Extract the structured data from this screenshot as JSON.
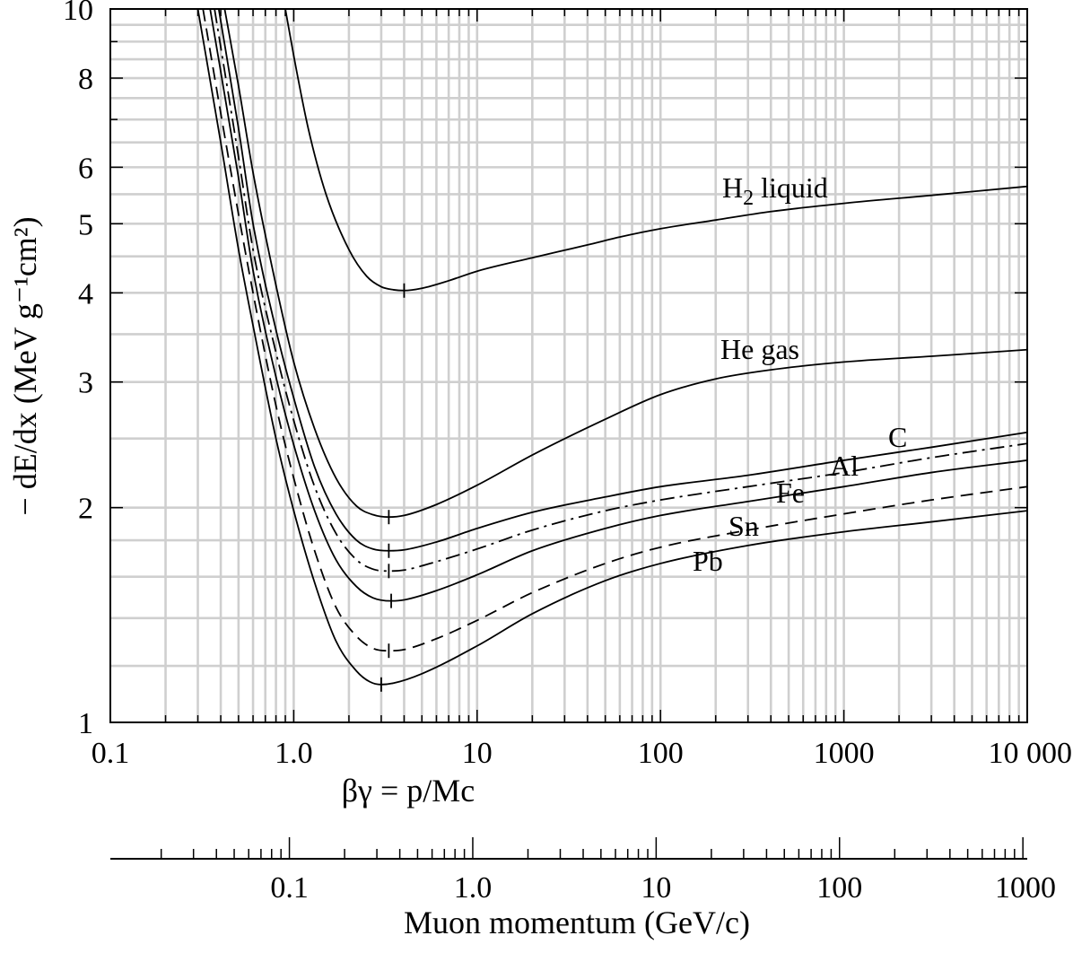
{
  "chart_data": {
    "type": "line",
    "title": "",
    "xlabel": "βγ = p/Mc",
    "ylabel": "− dE/dx (MeV g⁻¹cm²)",
    "xscale": "log",
    "yscale": "log",
    "xlim": [
      0.1,
      10000
    ],
    "ylim": [
      1,
      10
    ],
    "x_tick_labels": [
      "0.1",
      "1.0",
      "10",
      "100",
      "1000",
      "10 000"
    ],
    "y_tick_labels": [
      "1",
      "2",
      "3",
      "4",
      "5",
      "6",
      "8",
      "10"
    ],
    "secondary_axis": {
      "label": "Muon momentum (GeV/c)",
      "tick_labels": [
        "0.1",
        "1.0",
        "10",
        "100",
        "1000"
      ],
      "range": [
        0.01056,
        1056
      ]
    },
    "series": [
      {
        "name": "H2 liquid",
        "label": "H",
        "label_sub": "2",
        "label_suffix": " liquid",
        "style": "solid",
        "minimum": {
          "x": 4.0,
          "y": 4.03
        },
        "points": [
          [
            0.9,
            10
          ],
          [
            1.0,
            8.6
          ],
          [
            1.2,
            6.8
          ],
          [
            1.5,
            5.5
          ],
          [
            2.0,
            4.6
          ],
          [
            2.5,
            4.22
          ],
          [
            3.0,
            4.08
          ],
          [
            3.5,
            4.04
          ],
          [
            4.0,
            4.03
          ],
          [
            5,
            4.06
          ],
          [
            7,
            4.16
          ],
          [
            10,
            4.29
          ],
          [
            20,
            4.48
          ],
          [
            40,
            4.67
          ],
          [
            60,
            4.79
          ],
          [
            100,
            4.92
          ],
          [
            200,
            5.06
          ],
          [
            400,
            5.2
          ],
          [
            1000,
            5.34
          ],
          [
            3000,
            5.48
          ],
          [
            10000,
            5.64
          ]
        ]
      },
      {
        "name": "He gas",
        "label": "He gas",
        "style": "solid",
        "minimum": {
          "x": 3.3,
          "y": 1.94
        },
        "points": [
          [
            0.42,
            10
          ],
          [
            0.5,
            7.8
          ],
          [
            0.6,
            5.9
          ],
          [
            0.8,
            4.1
          ],
          [
            1.0,
            3.2
          ],
          [
            1.3,
            2.58
          ],
          [
            1.7,
            2.2
          ],
          [
            2.2,
            2.01
          ],
          [
            2.7,
            1.955
          ],
          [
            3.3,
            1.94
          ],
          [
            4,
            1.95
          ],
          [
            6,
            2.02
          ],
          [
            10,
            2.15
          ],
          [
            20,
            2.37
          ],
          [
            50,
            2.66
          ],
          [
            100,
            2.88
          ],
          [
            200,
            3.03
          ],
          [
            400,
            3.12
          ],
          [
            1000,
            3.2
          ],
          [
            3000,
            3.26
          ],
          [
            10000,
            3.33
          ]
        ]
      },
      {
        "name": "C",
        "label": "C",
        "style": "solid",
        "minimum": {
          "x": 3.3,
          "y": 1.74
        },
        "points": [
          [
            0.39,
            10
          ],
          [
            0.5,
            6.8
          ],
          [
            0.6,
            5.0
          ],
          [
            0.8,
            3.55
          ],
          [
            1.0,
            2.85
          ],
          [
            1.3,
            2.28
          ],
          [
            1.7,
            1.96
          ],
          [
            2.2,
            1.8
          ],
          [
            2.7,
            1.75
          ],
          [
            3.3,
            1.74
          ],
          [
            4,
            1.745
          ],
          [
            6,
            1.79
          ],
          [
            10,
            1.87
          ],
          [
            20,
            1.97
          ],
          [
            50,
            2.07
          ],
          [
            100,
            2.14
          ],
          [
            300,
            2.22
          ],
          [
            1000,
            2.33
          ],
          [
            3000,
            2.43
          ],
          [
            10000,
            2.55
          ]
        ]
      },
      {
        "name": "Al",
        "label": "Al",
        "style": "dashdot",
        "minimum": {
          "x": 3.3,
          "y": 1.63
        },
        "points": [
          [
            0.37,
            10
          ],
          [
            0.5,
            6.2
          ],
          [
            0.6,
            4.6
          ],
          [
            0.8,
            3.3
          ],
          [
            1.0,
            2.65
          ],
          [
            1.3,
            2.14
          ],
          [
            1.7,
            1.84
          ],
          [
            2.2,
            1.69
          ],
          [
            2.7,
            1.64
          ],
          [
            3.3,
            1.63
          ],
          [
            4,
            1.635
          ],
          [
            6,
            1.68
          ],
          [
            10,
            1.75
          ],
          [
            20,
            1.86
          ],
          [
            50,
            1.98
          ],
          [
            100,
            2.05
          ],
          [
            300,
            2.14
          ],
          [
            1000,
            2.24
          ],
          [
            3000,
            2.35
          ],
          [
            10000,
            2.46
          ]
        ]
      },
      {
        "name": "Fe",
        "label": "Fe",
        "style": "solid",
        "minimum": {
          "x": 3.4,
          "y": 1.48
        },
        "points": [
          [
            0.35,
            10
          ],
          [
            0.5,
            5.8
          ],
          [
            0.6,
            4.3
          ],
          [
            0.8,
            3.05
          ],
          [
            1.0,
            2.45
          ],
          [
            1.3,
            1.98
          ],
          [
            1.7,
            1.69
          ],
          [
            2.2,
            1.55
          ],
          [
            2.7,
            1.495
          ],
          [
            3.4,
            1.48
          ],
          [
            4,
            1.485
          ],
          [
            6,
            1.53
          ],
          [
            10,
            1.61
          ],
          [
            20,
            1.74
          ],
          [
            50,
            1.87
          ],
          [
            100,
            1.95
          ],
          [
            300,
            2.04
          ],
          [
            1000,
            2.14
          ],
          [
            3000,
            2.24
          ],
          [
            10000,
            2.33
          ]
        ]
      },
      {
        "name": "Sn",
        "label": "Sn",
        "style": "dashed",
        "minimum": {
          "x": 3.3,
          "y": 1.26
        },
        "points": [
          [
            0.32,
            10
          ],
          [
            0.45,
            6.0
          ],
          [
            0.6,
            4.0
          ],
          [
            0.8,
            2.78
          ],
          [
            1.0,
            2.2
          ],
          [
            1.3,
            1.74
          ],
          [
            1.7,
            1.45
          ],
          [
            2.2,
            1.32
          ],
          [
            2.7,
            1.27
          ],
          [
            3.3,
            1.26
          ],
          [
            4,
            1.265
          ],
          [
            6,
            1.31
          ],
          [
            10,
            1.39
          ],
          [
            20,
            1.52
          ],
          [
            50,
            1.67
          ],
          [
            100,
            1.76
          ],
          [
            300,
            1.86
          ],
          [
            1000,
            1.96
          ],
          [
            3000,
            2.05
          ],
          [
            10000,
            2.14
          ]
        ]
      },
      {
        "name": "Pb",
        "label": "Pb",
        "style": "solid",
        "minimum": {
          "x": 3.0,
          "y": 1.13
        },
        "points": [
          [
            0.3,
            10
          ],
          [
            0.4,
            6.5
          ],
          [
            0.5,
            4.6
          ],
          [
            0.6,
            3.6
          ],
          [
            0.8,
            2.5
          ],
          [
            1.0,
            1.98
          ],
          [
            1.3,
            1.57
          ],
          [
            1.7,
            1.3
          ],
          [
            2.2,
            1.18
          ],
          [
            2.6,
            1.14
          ],
          [
            3.0,
            1.13
          ],
          [
            3.5,
            1.135
          ],
          [
            5,
            1.17
          ],
          [
            10,
            1.28
          ],
          [
            20,
            1.42
          ],
          [
            50,
            1.58
          ],
          [
            100,
            1.67
          ],
          [
            300,
            1.77
          ],
          [
            1000,
            1.85
          ],
          [
            3000,
            1.91
          ],
          [
            10000,
            1.98
          ]
        ]
      }
    ]
  }
}
